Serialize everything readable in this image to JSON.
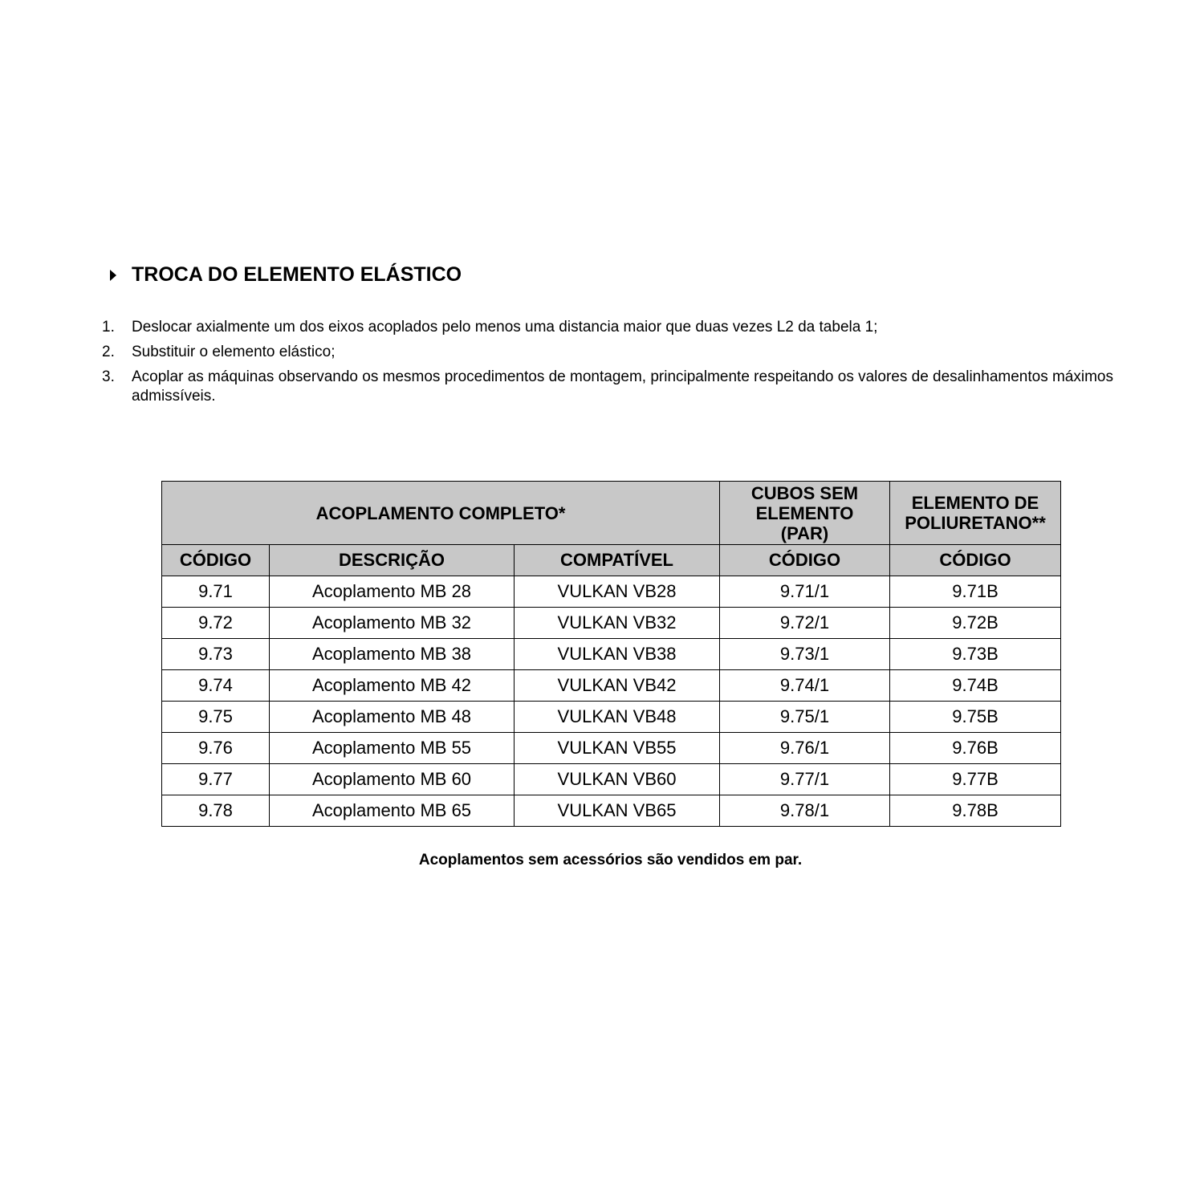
{
  "heading": {
    "icon": "triangle-right-icon",
    "title": "TROCA DO ELEMENTO ELÁSTICO"
  },
  "steps": [
    {
      "num": "1.",
      "text": "Deslocar axialmente um dos eixos acoplados pelo menos uma distancia maior que duas vezes L2 da tabela 1;"
    },
    {
      "num": "2.",
      "text": "Substituir o elemento elástico;"
    },
    {
      "num": "3.",
      "text": "Acoplar as máquinas observando os mesmos procedimentos de montagem, principalmente respeitando os valores de desalinhamentos máximos admissíveis."
    }
  ],
  "table": {
    "group_headers": [
      "ACOPLAMENTO COMPLETO*",
      "CUBOS SEM ELEMENTO (PAR)",
      "ELEMENTO DE POLIURETANO**"
    ],
    "columns": [
      "CÓDIGO",
      "DESCRIÇÃO",
      "COMPATÍVEL",
      "CÓDIGO",
      "CÓDIGO"
    ],
    "header_bg": "#c8c8c8",
    "rows": [
      [
        "9.71",
        "Acoplamento MB 28",
        "VULKAN VB28",
        "9.71/1",
        "9.71B"
      ],
      [
        "9.72",
        "Acoplamento MB 32",
        "VULKAN VB32",
        "9.72/1",
        "9.72B"
      ],
      [
        "9.73",
        "Acoplamento MB 38",
        "VULKAN VB38",
        "9.73/1",
        "9.73B"
      ],
      [
        "9.74",
        "Acoplamento MB 42",
        "VULKAN VB42",
        "9.74/1",
        "9.74B"
      ],
      [
        "9.75",
        "Acoplamento MB 48",
        "VULKAN VB48",
        "9.75/1",
        "9.75B"
      ],
      [
        "9.76",
        "Acoplamento MB 55",
        "VULKAN VB55",
        "9.76/1",
        "9.76B"
      ],
      [
        "9.77",
        "Acoplamento MB 60",
        "VULKAN VB60",
        "9.77/1",
        "9.77B"
      ],
      [
        "9.78",
        "Acoplamento MB 65",
        "VULKAN VB65",
        "9.78/1",
        "9.78B"
      ]
    ]
  },
  "note": "Acoplamentos sem acessórios são vendidos em par."
}
